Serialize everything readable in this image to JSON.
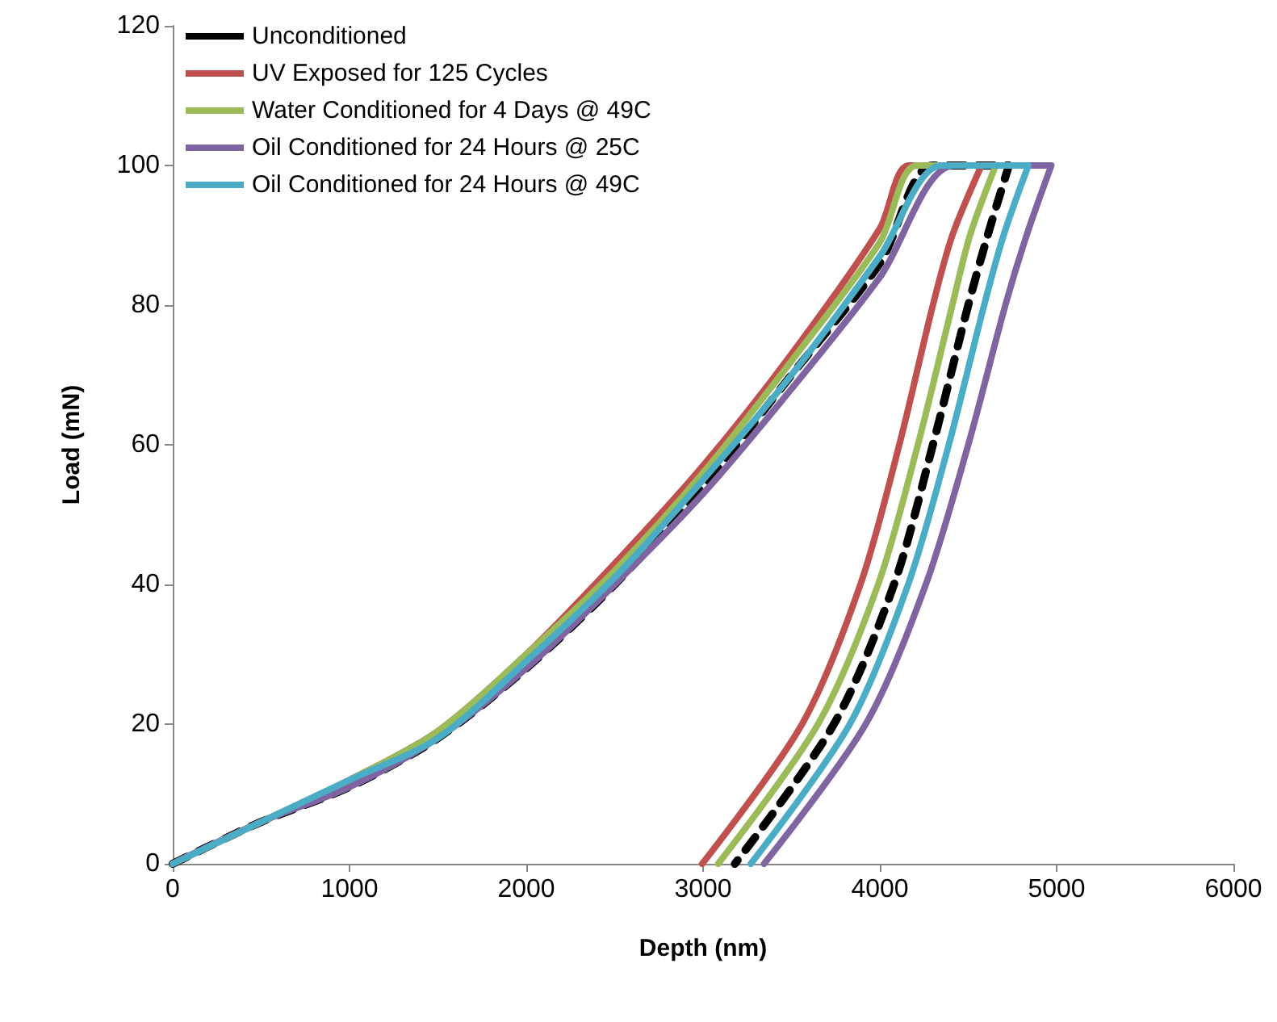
{
  "chart_data": {
    "type": "line",
    "xlabel": "Depth (nm)",
    "ylabel": "Load (mN)",
    "xlim": [
      0,
      6000
    ],
    "xticks": [
      0,
      1000,
      2000,
      3000,
      4000,
      5000,
      6000
    ],
    "ylim": [
      0,
      120
    ],
    "yticks": [
      0,
      20,
      40,
      60,
      80,
      100,
      120
    ],
    "grid": false,
    "legend": "top left",
    "marker": "none",
    "series": [
      {
        "name": "Unconditioned",
        "color": "#000000",
        "line_style": "dashed",
        "x": [
          0,
          500,
          1000,
          1500,
          2000,
          2500,
          3000,
          3500,
          4000,
          4300,
          4730,
          4610,
          4500,
          4300,
          4080,
          3740,
          3180
        ],
        "values": [
          0,
          6,
          11,
          18,
          28,
          40,
          54,
          70,
          86,
          100,
          100,
          90,
          80,
          60,
          40,
          20,
          0
        ]
      },
      {
        "name": "UV Exposed for 125 Cycles",
        "color": "#c0504d",
        "line_style": "solid",
        "x": [
          0,
          500,
          1000,
          1500,
          2000,
          2500,
          3000,
          3500,
          4000,
          4165,
          4575,
          4410,
          4300,
          4110,
          3890,
          3560,
          2995
        ],
        "values": [
          0,
          6,
          12,
          19,
          30,
          43,
          57,
          73,
          91,
          100,
          100,
          90,
          80,
          60,
          40,
          20,
          0
        ]
      },
      {
        "name": "Water Conditioned for 4 Days @ 49C",
        "color": "#9bbb59",
        "line_style": "solid",
        "x": [
          0,
          500,
          1000,
          1500,
          2000,
          2500,
          3000,
          3500,
          4000,
          4210,
          4655,
          4510,
          4410,
          4215,
          3990,
          3650,
          3085
        ],
        "values": [
          0,
          6,
          12,
          19,
          30,
          42,
          56,
          72,
          89,
          100,
          100,
          90,
          80,
          60,
          40,
          20,
          0
        ]
      },
      {
        "name": "Oil Conditioned for 24 Hours @ 25C",
        "color": "#8064a2",
        "line_style": "solid",
        "x": [
          0,
          500,
          1000,
          1500,
          2000,
          2500,
          3000,
          3500,
          4000,
          4420,
          4970,
          4830,
          4710,
          4500,
          4260,
          3920,
          3345
        ],
        "values": [
          0,
          6,
          11,
          18,
          28,
          40,
          53,
          68,
          84,
          100,
          100,
          90,
          80,
          60,
          40,
          20,
          0
        ]
      },
      {
        "name": "Oil Conditioned for 24 Hours @ 49C",
        "color": "#4bacc6",
        "line_style": "solid",
        "x": [
          0,
          500,
          1000,
          1500,
          2000,
          2500,
          3000,
          3500,
          4000,
          4350,
          4840,
          4700,
          4590,
          4390,
          4160,
          3830,
          3270
        ],
        "values": [
          0,
          6,
          12,
          18,
          29,
          41,
          55,
          70,
          87,
          100,
          100,
          90,
          80,
          60,
          40,
          20,
          0
        ]
      }
    ]
  }
}
